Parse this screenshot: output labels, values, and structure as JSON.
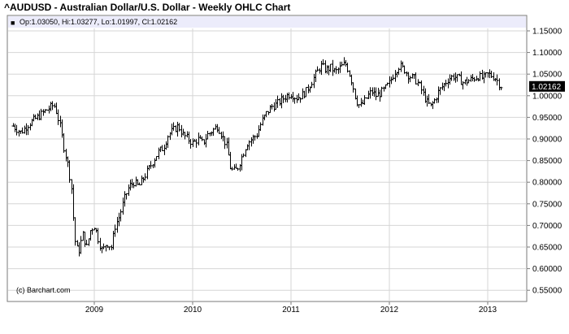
{
  "title": "^AUDUSD - Australian Dollar/U.S. Dollar - Weekly OHLC Chart",
  "info_bar": {
    "legend_marker": "■",
    "text": "Op:1.03050, Hi:1.03277, Lo:1.01997, Cl:1.02162"
  },
  "last_price_label": "1.02162",
  "credit": "(c) Barchart.com",
  "colors": {
    "bars": "#000000",
    "grid": "#d6d6d6",
    "info_bar_bg": "#ececfb",
    "frame": "#7a7a7a",
    "price_box": "#000000"
  },
  "chart_data": {
    "type": "ohlc",
    "series": [
      {
        "name": "^AUDUSD"
      }
    ],
    "y_ticks": [
      "1.15000",
      "1.10000",
      "1.05000",
      "1.00000",
      "0.95000",
      "0.90000",
      "0.85000",
      "0.80000",
      "0.75000",
      "0.70000",
      "0.65000",
      "0.60000",
      "0.55000"
    ],
    "ylim": [
      0.525,
      1.17
    ],
    "x_ticks": [
      "2009",
      "2010",
      "2011",
      "2012",
      "2013"
    ],
    "x_tick_years": [
      2009,
      2010,
      2011,
      2012,
      2013
    ],
    "xlim": [
      2008.15,
      2013.45
    ],
    "grid": true,
    "weekly_close": [
      [
        2008.17,
        0.93
      ],
      [
        2008.25,
        0.915
      ],
      [
        2008.33,
        0.935
      ],
      [
        2008.42,
        0.95
      ],
      [
        2008.5,
        0.965
      ],
      [
        2008.58,
        0.978
      ],
      [
        2008.6,
        0.975
      ],
      [
        2008.65,
        0.93
      ],
      [
        2008.69,
        0.88
      ],
      [
        2008.73,
        0.84
      ],
      [
        2008.77,
        0.78
      ],
      [
        2008.79,
        0.7
      ],
      [
        2008.81,
        0.65
      ],
      [
        2008.84,
        0.64
      ],
      [
        2008.88,
        0.68
      ],
      [
        2008.92,
        0.65
      ],
      [
        2008.96,
        0.69
      ],
      [
        2009.0,
        0.7
      ],
      [
        2009.04,
        0.665
      ],
      [
        2009.08,
        0.64
      ],
      [
        2009.12,
        0.66
      ],
      [
        2009.17,
        0.65
      ],
      [
        2009.21,
        0.7
      ],
      [
        2009.25,
        0.72
      ],
      [
        2009.3,
        0.76
      ],
      [
        2009.35,
        0.79
      ],
      [
        2009.4,
        0.8
      ],
      [
        2009.45,
        0.79
      ],
      [
        2009.5,
        0.81
      ],
      [
        2009.55,
        0.83
      ],
      [
        2009.6,
        0.85
      ],
      [
        2009.65,
        0.87
      ],
      [
        2009.7,
        0.88
      ],
      [
        2009.75,
        0.91
      ],
      [
        2009.8,
        0.92
      ],
      [
        2009.85,
        0.93
      ],
      [
        2009.9,
        0.91
      ],
      [
        2009.95,
        0.9
      ],
      [
        2010.0,
        0.89
      ],
      [
        2010.05,
        0.9
      ],
      [
        2010.1,
        0.89
      ],
      [
        2010.15,
        0.91
      ],
      [
        2010.2,
        0.92
      ],
      [
        2010.25,
        0.93
      ],
      [
        2010.3,
        0.905
      ],
      [
        2010.35,
        0.88
      ],
      [
        2010.38,
        0.835
      ],
      [
        2010.41,
        0.825
      ],
      [
        2010.45,
        0.83
      ],
      [
        2010.5,
        0.86
      ],
      [
        2010.55,
        0.89
      ],
      [
        2010.6,
        0.9
      ],
      [
        2010.65,
        0.91
      ],
      [
        2010.7,
        0.94
      ],
      [
        2010.75,
        0.96
      ],
      [
        2010.8,
        0.975
      ],
      [
        2010.85,
        0.98
      ],
      [
        2010.9,
        0.99
      ],
      [
        2010.95,
        1.0
      ],
      [
        2011.0,
        1.005
      ],
      [
        2011.05,
        0.995
      ],
      [
        2011.1,
        1.0
      ],
      [
        2011.15,
        1.01
      ],
      [
        2011.2,
        1.03
      ],
      [
        2011.25,
        1.05
      ],
      [
        2011.3,
        1.07
      ],
      [
        2011.35,
        1.06
      ],
      [
        2011.4,
        1.065
      ],
      [
        2011.45,
        1.055
      ],
      [
        2011.5,
        1.065
      ],
      [
        2011.55,
        1.075
      ],
      [
        2011.58,
        1.06
      ],
      [
        2011.62,
        1.03
      ],
      [
        2011.66,
        0.99
      ],
      [
        2011.7,
        0.975
      ],
      [
        2011.74,
        0.985
      ],
      [
        2011.78,
        1.0
      ],
      [
        2011.82,
        1.01
      ],
      [
        2011.86,
        1.0
      ],
      [
        2011.9,
        1.005
      ],
      [
        2011.95,
        1.015
      ],
      [
        2012.0,
        1.03
      ],
      [
        2012.05,
        1.055
      ],
      [
        2012.1,
        1.07
      ],
      [
        2012.15,
        1.06
      ],
      [
        2012.2,
        1.045
      ],
      [
        2012.25,
        1.04
      ],
      [
        2012.3,
        1.025
      ],
      [
        2012.35,
        1.0
      ],
      [
        2012.38,
        0.985
      ],
      [
        2012.42,
        0.975
      ],
      [
        2012.46,
        0.99
      ],
      [
        2012.5,
        1.01
      ],
      [
        2012.55,
        1.025
      ],
      [
        2012.6,
        1.04
      ],
      [
        2012.65,
        1.045
      ],
      [
        2012.7,
        1.04
      ],
      [
        2012.75,
        1.03
      ],
      [
        2012.8,
        1.035
      ],
      [
        2012.85,
        1.04
      ],
      [
        2012.9,
        1.045
      ],
      [
        2012.95,
        1.04
      ],
      [
        2013.0,
        1.05
      ],
      [
        2013.05,
        1.045
      ],
      [
        2013.08,
        1.04
      ],
      [
        2013.12,
        1.025
      ],
      [
        2013.15,
        1.02
      ]
    ]
  }
}
